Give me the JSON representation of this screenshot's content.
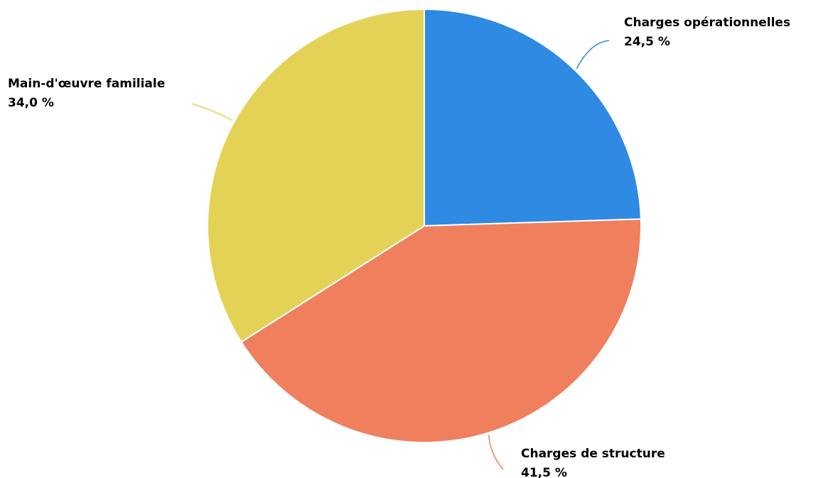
{
  "chart_data": {
    "type": "pie",
    "title": "",
    "start_angle_deg": 0,
    "direction": "clockwise",
    "slices": [
      {
        "label": "Charges opérationnelles",
        "value": 24.5,
        "value_label": "24,5 %",
        "color": "#2e8ae2"
      },
      {
        "label": "Charges de structure",
        "value": 41.5,
        "value_label": "41,5 %",
        "color": "#ef7f5d"
      },
      {
        "label": "Main-d'œuvre familiale",
        "value": 34.0,
        "value_label": "34,0 %",
        "color": "#e3d256"
      }
    ],
    "legend": "none",
    "data_labels": "outside-with-leader-lines"
  }
}
